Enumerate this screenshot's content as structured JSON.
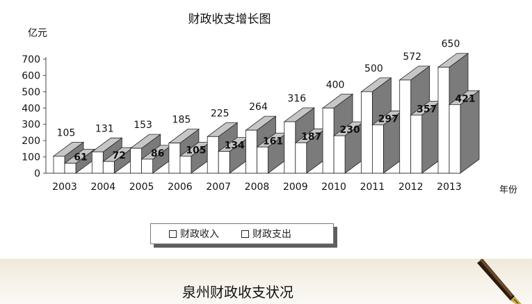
{
  "chart_data": {
    "type": "bar",
    "title": "财政收支增长图",
    "ylabel": "亿元",
    "xlabel": "年份",
    "ylim": [
      0,
      700
    ],
    "yticks": [
      0,
      100,
      200,
      300,
      400,
      500,
      600,
      700
    ],
    "categories": [
      "2003",
      "2004",
      "2005",
      "2006",
      "2007",
      "2008",
      "2009",
      "2010",
      "2011",
      "2012",
      "2013"
    ],
    "series": [
      {
        "name": "财政收入",
        "values": [
          105,
          131,
          153,
          185,
          225,
          264,
          316,
          400,
          500,
          572,
          650
        ]
      },
      {
        "name": "财政支出",
        "values": [
          61,
          72,
          86,
          105,
          134,
          161,
          187,
          230,
          297,
          357,
          421
        ]
      }
    ],
    "legend_position": "bottom-center",
    "grid": false,
    "three_d": true
  },
  "colors": {
    "bar_front": "#ffffff",
    "bar_top": "#c6c6c6",
    "bar_side": "#7b7b7b",
    "outline": "#222222",
    "axis": "#444444"
  },
  "caption": "泉州财政收支状况"
}
